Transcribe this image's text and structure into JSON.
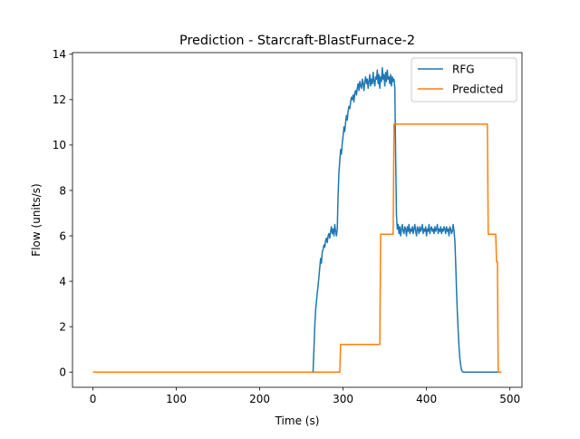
{
  "chart_data": {
    "type": "line",
    "title": "Prediction - Starcraft-BlastFurnace-2",
    "xlabel": "Time (s)",
    "ylabel": "Flow (units/s)",
    "xlim": [
      -24.5,
      514.5
    ],
    "ylim": [
      -0.67,
      14.07
    ],
    "x_ticks": [
      0,
      100,
      200,
      300,
      400,
      500
    ],
    "y_ticks": [
      0,
      2,
      4,
      6,
      8,
      10,
      12,
      14
    ],
    "grid": false,
    "legend_position": "upper right",
    "series": [
      {
        "name": "RFG",
        "color": "#1f77b4",
        "points": [
          [
            0,
            0
          ],
          [
            263,
            0
          ],
          [
            264,
            0.05
          ],
          [
            265,
            1.0
          ],
          [
            266,
            2.0
          ],
          [
            267,
            2.7
          ],
          [
            268,
            3.1
          ],
          [
            269,
            3.5
          ],
          [
            270,
            3.8
          ],
          [
            271,
            4.2
          ],
          [
            272,
            4.6
          ],
          [
            273,
            5.0
          ],
          [
            274,
            4.8
          ],
          [
            275,
            5.3
          ],
          [
            276,
            5.4
          ],
          [
            277,
            5.6
          ],
          [
            278,
            5.5
          ],
          [
            279,
            5.8
          ],
          [
            280,
            5.9
          ],
          [
            281,
            5.7
          ],
          [
            282,
            6.0
          ],
          [
            283,
            6.1
          ],
          [
            284,
            5.9
          ],
          [
            285,
            6.2
          ],
          [
            286,
            6.4
          ],
          [
            287,
            6.1
          ],
          [
            288,
            6.3
          ],
          [
            289,
            6.0
          ],
          [
            290,
            6.5
          ],
          [
            291,
            6.2
          ],
          [
            292,
            6.0
          ],
          [
            293,
            6.3
          ],
          [
            294,
            7.8
          ],
          [
            295,
            8.8
          ],
          [
            296,
            9.3
          ],
          [
            297,
            9.8
          ],
          [
            298,
            9.6
          ],
          [
            299,
            10.1
          ],
          [
            300,
            10.4
          ],
          [
            301,
            10.8
          ],
          [
            302,
            10.6
          ],
          [
            303,
            11.0
          ],
          [
            304,
            11.3
          ],
          [
            305,
            11.1
          ],
          [
            306,
            11.5
          ],
          [
            307,
            11.7
          ],
          [
            308,
            11.6
          ],
          [
            309,
            11.9
          ],
          [
            310,
            12.1
          ],
          [
            311,
            12.0
          ],
          [
            312,
            12.2
          ],
          [
            313,
            11.9
          ],
          [
            314,
            12.3
          ],
          [
            315,
            12.4
          ],
          [
            316,
            12.2
          ],
          [
            317,
            12.5
          ],
          [
            318,
            12.7
          ],
          [
            319,
            12.4
          ],
          [
            320,
            12.8
          ],
          [
            321,
            12.6
          ],
          [
            322,
            12.5
          ],
          [
            323,
            12.9
          ],
          [
            324,
            12.7
          ],
          [
            325,
            12.4
          ],
          [
            326,
            12.8
          ],
          [
            327,
            13.0
          ],
          [
            328,
            12.7
          ],
          [
            329,
            12.9
          ],
          [
            330,
            12.5
          ],
          [
            331,
            12.8
          ],
          [
            332,
            13.1
          ],
          [
            333,
            12.6
          ],
          [
            334,
            12.9
          ],
          [
            335,
            12.7
          ],
          [
            336,
            13.2
          ],
          [
            337,
            12.8
          ],
          [
            338,
            12.6
          ],
          [
            339,
            13.0
          ],
          [
            340,
            12.9
          ],
          [
            341,
            13.3
          ],
          [
            342,
            12.7
          ],
          [
            343,
            13.1
          ],
          [
            344,
            12.5
          ],
          [
            345,
            13.0
          ],
          [
            346,
            12.8
          ],
          [
            347,
            13.4
          ],
          [
            348,
            12.9
          ],
          [
            349,
            13.1
          ],
          [
            350,
            12.6
          ],
          [
            351,
            13.2
          ],
          [
            352,
            12.8
          ],
          [
            353,
            13.3
          ],
          [
            354,
            12.9
          ],
          [
            355,
            13.0
          ],
          [
            356,
            12.7
          ],
          [
            357,
            13.1
          ],
          [
            358,
            12.6
          ],
          [
            359,
            13.0
          ],
          [
            360,
            12.8
          ],
          [
            361,
            12.9
          ],
          [
            362,
            12.5
          ],
          [
            363,
            9.5
          ],
          [
            364,
            6.9
          ],
          [
            365,
            6.3
          ],
          [
            366,
            6.5
          ],
          [
            367,
            6.1
          ],
          [
            368,
            6.4
          ],
          [
            369,
            6.0
          ],
          [
            370,
            6.3
          ],
          [
            371,
            6.5
          ],
          [
            372,
            6.2
          ],
          [
            373,
            6.1
          ],
          [
            374,
            6.4
          ],
          [
            375,
            6.3
          ],
          [
            376,
            6.0
          ],
          [
            377,
            6.4
          ],
          [
            378,
            6.2
          ],
          [
            379,
            6.5
          ],
          [
            380,
            6.1
          ],
          [
            381,
            6.3
          ],
          [
            382,
            6.2
          ],
          [
            383,
            6.4
          ],
          [
            384,
            6.1
          ],
          [
            385,
            6.3
          ],
          [
            386,
            6.5
          ],
          [
            387,
            6.2
          ],
          [
            388,
            6.0
          ],
          [
            389,
            6.4
          ],
          [
            390,
            6.3
          ],
          [
            391,
            6.1
          ],
          [
            392,
            6.4
          ],
          [
            393,
            6.2
          ],
          [
            394,
            6.3
          ],
          [
            395,
            6.5
          ],
          [
            396,
            6.1
          ],
          [
            397,
            6.3
          ],
          [
            398,
            6.2
          ],
          [
            399,
            6.4
          ],
          [
            400,
            6.0
          ],
          [
            401,
            6.3
          ],
          [
            402,
            6.2
          ],
          [
            403,
            6.5
          ],
          [
            404,
            6.1
          ],
          [
            405,
            6.3
          ],
          [
            406,
            6.4
          ],
          [
            407,
            6.2
          ],
          [
            408,
            6.3
          ],
          [
            409,
            6.1
          ],
          [
            410,
            6.4
          ],
          [
            411,
            6.2
          ],
          [
            412,
            6.3
          ],
          [
            413,
            6.5
          ],
          [
            414,
            6.1
          ],
          [
            415,
            6.3
          ],
          [
            416,
            6.2
          ],
          [
            417,
            6.4
          ],
          [
            418,
            6.1
          ],
          [
            419,
            6.3
          ],
          [
            420,
            6.2
          ],
          [
            421,
            6.4
          ],
          [
            422,
            6.3
          ],
          [
            423,
            6.1
          ],
          [
            424,
            6.4
          ],
          [
            425,
            6.2
          ],
          [
            426,
            6.3
          ],
          [
            427,
            6.0
          ],
          [
            428,
            6.4
          ],
          [
            429,
            6.3
          ],
          [
            430,
            6.1
          ],
          [
            431,
            6.2
          ],
          [
            432,
            6.5
          ],
          [
            433,
            6.2
          ],
          [
            434,
            5.8
          ],
          [
            435,
            4.8
          ],
          [
            436,
            3.6
          ],
          [
            437,
            2.6
          ],
          [
            438,
            1.8
          ],
          [
            439,
            1.1
          ],
          [
            440,
            0.6
          ],
          [
            441,
            0.3
          ],
          [
            442,
            0.1
          ],
          [
            443,
            0.02
          ],
          [
            444,
            0
          ],
          [
            488,
            0
          ]
        ]
      },
      {
        "name": "Predicted",
        "color": "#ff7f0e",
        "points": [
          [
            0,
            0
          ],
          [
            296,
            0
          ],
          [
            297,
            1.22
          ],
          [
            344,
            1.22
          ],
          [
            345,
            6.07
          ],
          [
            360,
            6.07
          ],
          [
            361,
            10.92
          ],
          [
            473,
            10.92
          ],
          [
            474,
            6.07
          ],
          [
            483,
            6.07
          ],
          [
            484,
            4.85
          ],
          [
            485,
            4.85
          ],
          [
            486,
            0
          ],
          [
            490,
            0
          ]
        ]
      }
    ]
  }
}
